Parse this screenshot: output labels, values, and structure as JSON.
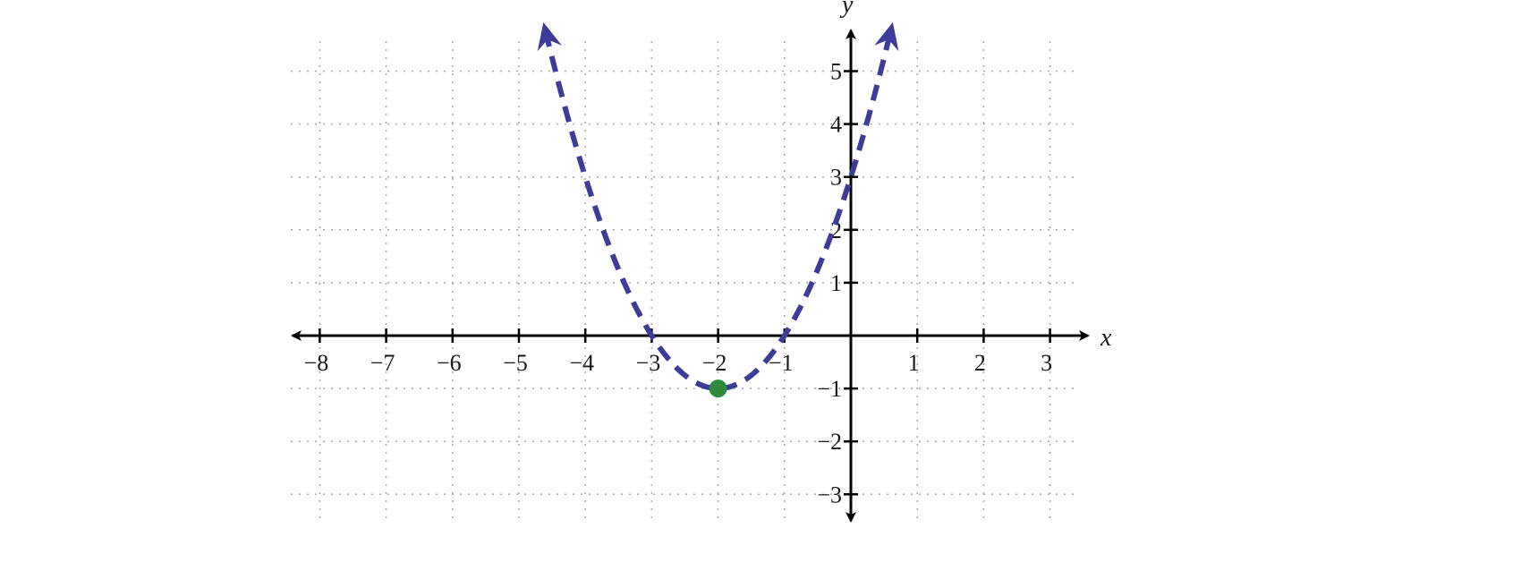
{
  "chart_data": {
    "type": "line",
    "title": "",
    "xlabel": "x",
    "ylabel": "y",
    "xlim": [
      -8.4,
      3.6
    ],
    "ylim": [
      -3.5,
      5.7
    ],
    "x_ticks": [
      -8,
      -7,
      -6,
      -5,
      -4,
      -3,
      -2,
      -1,
      1,
      2,
      3
    ],
    "y_ticks": [
      -3,
      -2,
      -1,
      1,
      2,
      3,
      4,
      5
    ],
    "x_tick_labels": [
      "−8",
      "−7",
      "−6",
      "−5",
      "−4",
      "−3",
      "−2",
      "−1",
      "1",
      "2",
      "3"
    ],
    "y_tick_labels": [
      "−3",
      "−2",
      "−1",
      "1",
      "2",
      "3",
      "4",
      "5"
    ],
    "grid": true,
    "grid_style": "dotted",
    "series": [
      {
        "style": "dashed",
        "color": "#3d3d99",
        "arrows": "both-ends",
        "equation_points": [
          {
            "x": -4.6,
            "y": 5.76
          },
          {
            "x": -4.0,
            "y": 3.0
          },
          {
            "x": -3.0,
            "y": 0.0
          },
          {
            "x": -2.0,
            "y": -1.0
          },
          {
            "x": -1.0,
            "y": 0.0
          },
          {
            "x": 0.0,
            "y": 3.0
          },
          {
            "x": 0.6,
            "y": 5.76
          }
        ]
      }
    ],
    "points": [
      {
        "x": -2,
        "y": -1,
        "color": "#2e8b3e"
      }
    ]
  },
  "colors": {
    "axis": "#000000",
    "grid": "#a6a6a6",
    "curve": "#3d3d99",
    "vertex": "#2e8b3e"
  }
}
